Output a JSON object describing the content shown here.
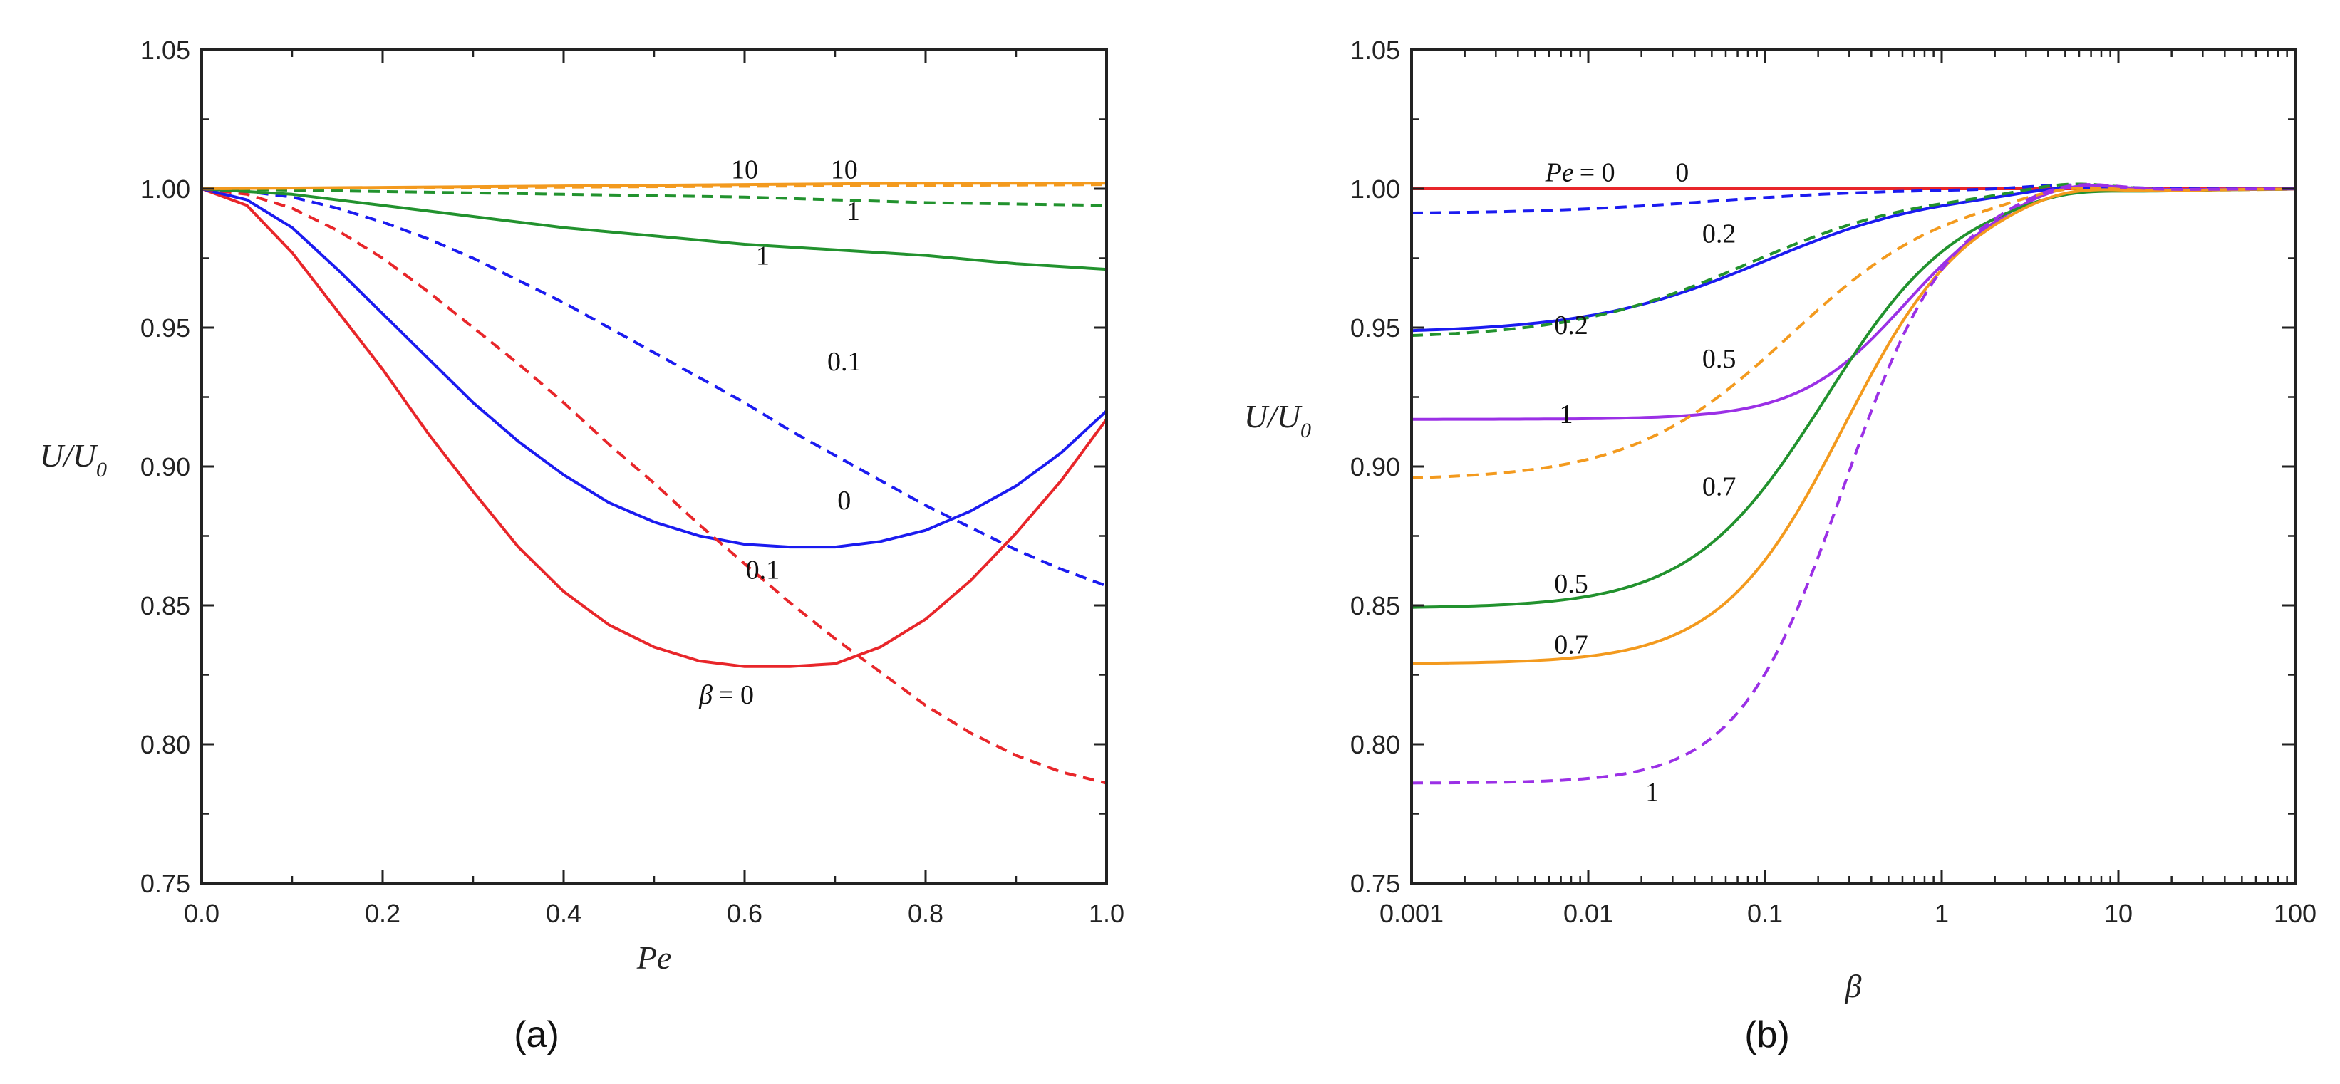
{
  "chart_data": [
    {
      "type": "line",
      "panel_label": "(a)",
      "xlabel": "Pe",
      "ylabel": "U/U",
      "ylabel_sub": "0",
      "xscale": "linear",
      "xlim": [
        0.0,
        1.0
      ],
      "ylim": [
        0.75,
        1.05
      ],
      "xticks": [
        0.0,
        0.2,
        0.4,
        0.6,
        0.8,
        1.0
      ],
      "xtick_labels": [
        "0.0",
        "0.2",
        "0.4",
        "0.6",
        "0.8",
        "1.0"
      ],
      "yticks": [
        0.75,
        0.8,
        0.85,
        0.9,
        0.95,
        1.0,
        1.05
      ],
      "ytick_labels": [
        "0.75",
        "0.80",
        "0.85",
        "0.90",
        "0.95",
        "1.00",
        "1.05"
      ],
      "grid": false,
      "series": [
        {
          "name": "β = 0 (solid)",
          "color": "#e8262a",
          "dash": "solid",
          "x": [
            0,
            0.05,
            0.1,
            0.15,
            0.2,
            0.25,
            0.3,
            0.35,
            0.4,
            0.45,
            0.5,
            0.55,
            0.6,
            0.65,
            0.7,
            0.75,
            0.8,
            0.85,
            0.9,
            0.95,
            1.0
          ],
          "y": [
            1.0,
            0.994,
            0.977,
            0.956,
            0.935,
            0.912,
            0.891,
            0.871,
            0.855,
            0.843,
            0.835,
            0.83,
            0.828,
            0.828,
            0.829,
            0.835,
            0.845,
            0.859,
            0.876,
            0.895,
            0.917
          ]
        },
        {
          "name": "β = 0.1 (solid)",
          "color": "#1b1bf0",
          "dash": "solid",
          "x": [
            0,
            0.05,
            0.1,
            0.15,
            0.2,
            0.25,
            0.3,
            0.35,
            0.4,
            0.45,
            0.5,
            0.55,
            0.6,
            0.65,
            0.7,
            0.75,
            0.8,
            0.85,
            0.9,
            0.95,
            1.0
          ],
          "y": [
            1.0,
            0.996,
            0.986,
            0.971,
            0.955,
            0.939,
            0.923,
            0.909,
            0.897,
            0.887,
            0.88,
            0.875,
            0.872,
            0.871,
            0.871,
            0.873,
            0.877,
            0.884,
            0.893,
            0.905,
            0.92
          ]
        },
        {
          "name": "β = 0 (dashed)",
          "color": "#e8262a",
          "dash": "dashed",
          "x": [
            0,
            0.05,
            0.1,
            0.15,
            0.2,
            0.25,
            0.3,
            0.35,
            0.4,
            0.45,
            0.5,
            0.55,
            0.6,
            0.65,
            0.7,
            0.75,
            0.8,
            0.85,
            0.9,
            0.95,
            1.0
          ],
          "y": [
            1.0,
            0.998,
            0.993,
            0.985,
            0.975,
            0.963,
            0.95,
            0.937,
            0.923,
            0.908,
            0.894,
            0.879,
            0.865,
            0.851,
            0.838,
            0.826,
            0.814,
            0.804,
            0.796,
            0.79,
            0.786
          ]
        },
        {
          "name": "β = 0.1 (dashed)",
          "color": "#1b1bf0",
          "dash": "dashed",
          "x": [
            0,
            0.05,
            0.1,
            0.15,
            0.2,
            0.25,
            0.3,
            0.35,
            0.4,
            0.45,
            0.5,
            0.55,
            0.6,
            0.65,
            0.7,
            0.75,
            0.8,
            0.85,
            0.9,
            0.95,
            1.0
          ],
          "y": [
            1.0,
            0.999,
            0.997,
            0.993,
            0.988,
            0.982,
            0.975,
            0.967,
            0.959,
            0.95,
            0.941,
            0.932,
            0.923,
            0.913,
            0.904,
            0.895,
            0.886,
            0.878,
            0.87,
            0.863,
            0.857
          ]
        },
        {
          "name": "β = 1 (solid)",
          "color": "#22922e",
          "dash": "solid",
          "x": [
            0,
            0.1,
            0.2,
            0.3,
            0.4,
            0.5,
            0.6,
            0.7,
            0.8,
            0.9,
            1.0
          ],
          "y": [
            1.0,
            0.998,
            0.994,
            0.99,
            0.986,
            0.983,
            0.98,
            0.978,
            0.976,
            0.973,
            0.971
          ]
        },
        {
          "name": "β = 1 (dashed)",
          "color": "#22922e",
          "dash": "dashed",
          "x": [
            0,
            0.2,
            0.4,
            0.6,
            0.8,
            1.0
          ],
          "y": [
            1.0,
            0.999,
            0.998,
            0.997,
            0.995,
            0.994
          ]
        },
        {
          "name": "β = 10 (solid)",
          "color": "#f39a1e",
          "dash": "solid",
          "x": [
            0,
            0.2,
            0.4,
            0.6,
            0.8,
            1.0
          ],
          "y": [
            1.0,
            1.0005,
            1.001,
            1.0015,
            1.002,
            1.002
          ]
        },
        {
          "name": "β = 10 (dashed)",
          "color": "#f39a1e",
          "dash": "dashed",
          "x": [
            0,
            0.2,
            0.4,
            0.6,
            0.8,
            1.0
          ],
          "y": [
            1.0,
            1.0003,
            1.0006,
            1.0009,
            1.0012,
            1.0015
          ]
        }
      ],
      "annotations": [
        {
          "text": "10",
          "x": 0.6,
          "y": 1.007
        },
        {
          "text": "10",
          "x": 0.71,
          "y": 1.007
        },
        {
          "text": "1",
          "x": 0.72,
          "y": 0.992
        },
        {
          "text": "1",
          "x": 0.62,
          "y": 0.976
        },
        {
          "text": "0.1",
          "x": 0.71,
          "y": 0.938
        },
        {
          "text": "0",
          "x": 0.71,
          "y": 0.888
        },
        {
          "text": "0.1",
          "x": 0.62,
          "y": 0.863
        },
        {
          "text": "β = 0",
          "x": 0.58,
          "y": 0.818,
          "italic_prefix": "β",
          "rest": "= 0"
        }
      ]
    },
    {
      "type": "line",
      "panel_label": "(b)",
      "xlabel": "β",
      "ylabel": "U/U",
      "ylabel_sub": "0",
      "xscale": "log",
      "xlim": [
        0.001,
        100
      ],
      "ylim": [
        0.75,
        1.05
      ],
      "xticks": [
        0.001,
        0.01,
        0.1,
        1,
        10,
        100
      ],
      "xtick_labels": [
        "0.001",
        "0.01",
        "0.1",
        "1",
        "10",
        "100"
      ],
      "yticks": [
        0.75,
        0.8,
        0.85,
        0.9,
        0.95,
        1.0,
        1.05
      ],
      "ytick_labels": [
        "0.75",
        "0.80",
        "0.85",
        "0.90",
        "0.95",
        "1.00",
        "1.05"
      ],
      "grid": false,
      "series": [
        {
          "name": "Pe = 0",
          "color": "#e8262a",
          "dash": "solid",
          "base": 1.0,
          "mid": 0.4,
          "width": 0.5,
          "bump": 0.0
        },
        {
          "name": "Pe = 0.2 (dashed)",
          "color": "#1b1bf0",
          "dash": "dashed",
          "base": 0.991,
          "mid": 0.05,
          "width": 0.5,
          "bump": 0.0015
        },
        {
          "name": "Pe = 0.2 (solid)",
          "color": "#1b1bf0",
          "dash": "solid",
          "base": 0.948,
          "mid": 0.1,
          "width": 0.5,
          "bump": 0.002
        },
        {
          "name": "Pe = 0.5 (dashed)",
          "color": "#22922e",
          "dash": "dashed",
          "base": 0.946,
          "mid": 0.08,
          "width": 0.5,
          "bump": 0.003
        },
        {
          "name": "Pe = 1 (solid)",
          "color": "#9b30e6",
          "dash": "solid",
          "base": 0.917,
          "mid": 0.62,
          "width": 0.3,
          "bump": 0.004
        },
        {
          "name": "Pe = 0.7 (dashed)",
          "color": "#f39a1e",
          "dash": "dashed",
          "base": 0.895,
          "mid": 0.14,
          "width": 0.45,
          "bump": 0.003
        },
        {
          "name": "Pe = 0.5 (solid)",
          "color": "#22922e",
          "dash": "solid",
          "base": 0.849,
          "mid": 0.22,
          "width": 0.38,
          "bump": 0.002
        },
        {
          "name": "Pe = 0.7 (solid)",
          "color": "#f39a1e",
          "dash": "solid",
          "base": 0.829,
          "mid": 0.28,
          "width": 0.35,
          "bump": 0.003
        },
        {
          "name": "Pe = 1 (dashed)",
          "color": "#9b30e6",
          "dash": "dashed",
          "base": 0.786,
          "mid": 0.28,
          "width": 0.3,
          "bump": 0.004
        }
      ],
      "annotations": [
        {
          "text": "Pe = 0",
          "x": 0.009,
          "y": 1.006,
          "italic_prefix": "Pe",
          "rest": "= 0"
        },
        {
          "text": "0",
          "x": 0.034,
          "y": 1.006
        },
        {
          "text": "0.2",
          "x": 0.055,
          "y": 0.984
        },
        {
          "text": "0.2",
          "x": 0.008,
          "y": 0.951
        },
        {
          "text": "0.5",
          "x": 0.055,
          "y": 0.939
        },
        {
          "text": "1",
          "x": 0.0075,
          "y": 0.919
        },
        {
          "text": "0.7",
          "x": 0.055,
          "y": 0.893
        },
        {
          "text": "0.5",
          "x": 0.008,
          "y": 0.858
        },
        {
          "text": "0.7",
          "x": 0.008,
          "y": 0.836
        },
        {
          "text": "1",
          "x": 0.023,
          "y": 0.783
        }
      ]
    }
  ]
}
